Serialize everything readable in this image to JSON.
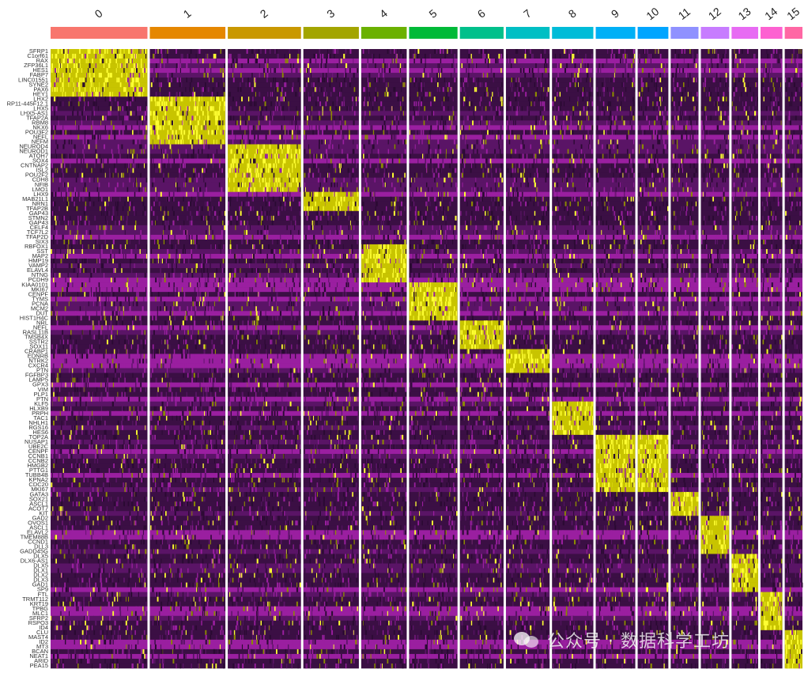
{
  "chart_data": {
    "type": "heatmap",
    "title": "",
    "xlabel": "",
    "ylabel": "",
    "colorscale": {
      "low": "#2a0a32",
      "mid": "#9a1fa0",
      "high": "#ffff33"
    },
    "clusters": [
      "0",
      "1",
      "2",
      "3",
      "4",
      "5",
      "6",
      "7",
      "8",
      "9",
      "10",
      "11",
      "12",
      "13",
      "14",
      "15"
    ],
    "cluster_colors": [
      "#f8766d",
      "#e58700",
      "#c99800",
      "#a3a500",
      "#6bb100",
      "#00ba38",
      "#00c08b",
      "#00bfc4",
      "#00bcd8",
      "#00b0f6",
      "#00a5ff",
      "#8f91ff",
      "#c77cff",
      "#e76bf3",
      "#fd61d1",
      "#ff67a4"
    ],
    "cluster_cell_share": [
      0.164,
      0.128,
      0.124,
      0.094,
      0.077,
      0.082,
      0.074,
      0.074,
      0.07,
      0.067,
      0.052,
      0.047,
      0.048,
      0.045,
      0.037,
      0.03
    ],
    "genes": [
      "SFRP1",
      "C1orf61",
      "RAX",
      "ZFP36L1",
      "HES1",
      "FABP7",
      "LINC01551",
      "SYNE2",
      "PAX6",
      "HEY1",
      "LHX2",
      "RP11-445F12.1",
      "LHX5",
      "LHX5-AS1",
      "TFAP2A",
      "RBM8",
      "NKX6",
      "POU3F2",
      "NEFL",
      "NEFM",
      "NEUROD4",
      "NEUROD1",
      "ATOH7",
      "SOX4",
      "CNTNAP2",
      "ISL2",
      "POU2F2",
      "CDH8",
      "NFIB",
      "LMO1",
      "LHX9",
      "MAB21L1",
      "NRN1",
      "TFAP2B",
      "GAP43",
      "STMN2",
      "GAP43",
      "CELF4",
      "TCF7L2",
      "TFAP2D",
      "SIX3",
      "RBFOX1",
      "SST",
      "MAP2",
      "HMP19",
      "VAMP2",
      "ELAVL4",
      "NTNG",
      "PCDH9",
      "KIAA0101",
      "MKI67",
      "CENPF",
      "TYMS",
      "PCNA",
      "MCM2",
      "DUT",
      "HIST1H4C",
      "NRL",
      "NEFL",
      "RASL11B",
      "TMSB4X",
      "SSTR2",
      "SOX11",
      "CRABP1",
      "EDNRB",
      "NTRK2",
      "CXCR4",
      "PTN",
      "FGFBP3",
      "LAMP5",
      "GPX3",
      "VIM",
      "PLP1",
      "PTN",
      "KLF5",
      "HLXB9",
      "PRPH",
      "TAC1",
      "NHLH1",
      "RGS16",
      "HES6",
      "TOP2A",
      "NUSAP1",
      "UBE2C",
      "CENPF",
      "CCNB1",
      "CCNB2",
      "HMGB2",
      "PTTG1",
      "TUBB4B",
      "KPNA2",
      "CDC20",
      "MKI67",
      "GATA3",
      "SOX21",
      "ASCL1",
      "ACOT7",
      "KIT",
      "GAD2",
      "OVOS1",
      "ASCL1",
      "ELAVL2",
      "TMEM88B",
      "CCND1",
      "DLL3",
      "GADD45G",
      "DLX5",
      "DLX6-AS1",
      "DLX5",
      "DLX1",
      "DLX2",
      "DLX3",
      "GAD1",
      "SP9",
      "FTL",
      "TRMT112",
      "KRT19",
      "TPBG",
      "MLC1",
      "SFRP2",
      "RSPO3",
      "ID4",
      "CLU",
      "MAST4",
      "ID2",
      "MT3",
      "BCAN",
      "NEAT1",
      "ARID",
      "PEA15"
    ],
    "marker_blocks": [
      {
        "cluster": "0",
        "genes_from": "SFRP1",
        "genes_to": "HEY1"
      },
      {
        "cluster": "1",
        "genes_from": "LHX2",
        "genes_to": "NEFM"
      },
      {
        "cluster": "2",
        "genes_from": "NEUROD4",
        "genes_to": "LMO1"
      },
      {
        "cluster": "3",
        "genes_from": "LHX9",
        "genes_to": "TFAP2B"
      },
      {
        "cluster": "4",
        "genes_from": "RBFOX1",
        "genes_to": "PCDH9"
      },
      {
        "cluster": "5",
        "genes_from": "KIAA0101",
        "genes_to": "HIST1H4C"
      },
      {
        "cluster": "6",
        "genes_from": "NRL",
        "genes_to": "SOX11"
      },
      {
        "cluster": "7",
        "genes_from": "CRABP1",
        "genes_to": "PTN"
      },
      {
        "cluster": "8",
        "genes_from": "KLF5",
        "genes_to": "HES6"
      },
      {
        "cluster": "9",
        "genes_from": "TOP2A",
        "genes_to": "MKI67"
      },
      {
        "cluster": "10",
        "genes_from": "TOP2A",
        "genes_to": "MKI67"
      },
      {
        "cluster": "11",
        "genes_from": "GATA3",
        "genes_to": "KIT"
      },
      {
        "cluster": "12",
        "genes_from": "GAD2",
        "genes_to": "GADD45G"
      },
      {
        "cluster": "13",
        "genes_from": "DLX5",
        "genes_to": "SP9"
      },
      {
        "cluster": "14",
        "genes_from": "FTL",
        "genes_to": "ID4"
      },
      {
        "cluster": "15",
        "genes_from": "CLU",
        "genes_to": "PEA15"
      }
    ]
  },
  "watermark": {
    "icon": "wechat-icon",
    "text": "公众号 · 数据科学工坊"
  }
}
